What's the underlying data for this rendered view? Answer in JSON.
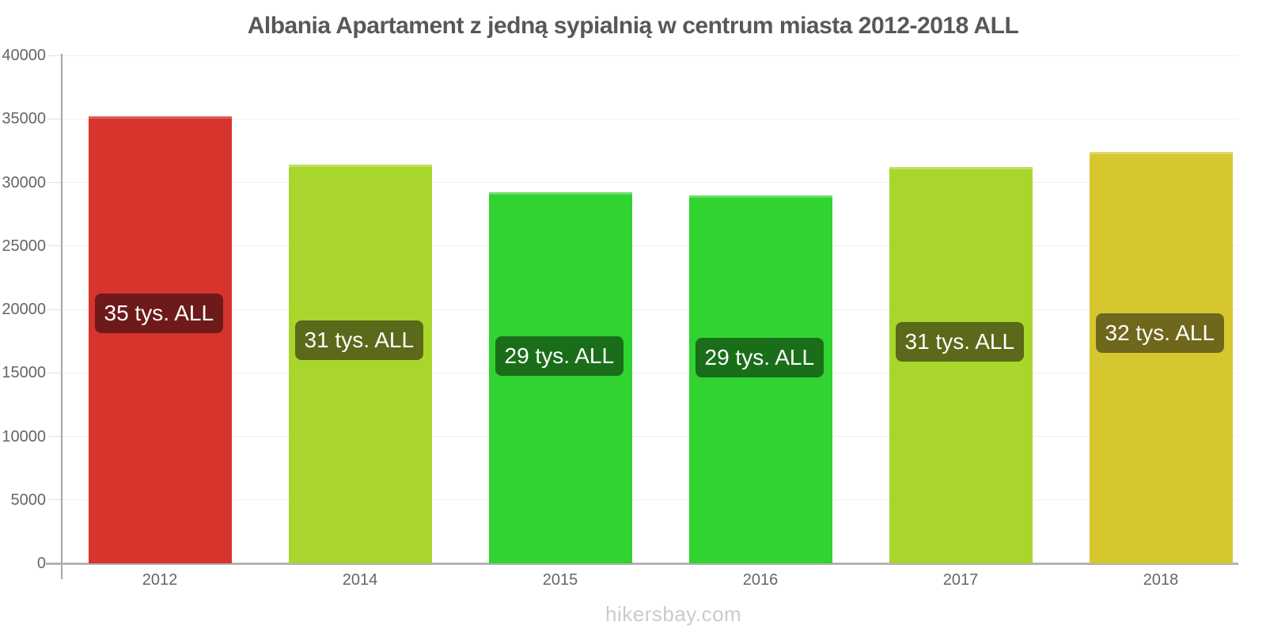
{
  "title": "Albania Apartament z jedną sypialnią w centrum miasta 2012-2018 ALL",
  "footer": "hikersbay.com",
  "colors": {
    "background": "#ffffff",
    "title": "#58585a",
    "axis_text": "#666666",
    "grid": "#f0f0f0",
    "tick": "#e2e2e2",
    "axis_line": "#a6a6a6",
    "baseline": "#b3b3b3",
    "label_text": "#ffffff",
    "footer": "#cbcbcb"
  },
  "chart_data": {
    "type": "bar",
    "title": "Albania Apartament z jedną sypialnią w centrum miasta 2012-2018 ALL",
    "xlabel": "",
    "ylabel": "",
    "categories": [
      "2012",
      "2014",
      "2015",
      "2016",
      "2017",
      "2018"
    ],
    "values": [
      35200,
      31400,
      29200,
      29000,
      31200,
      32400
    ],
    "bar_labels": [
      "35 tys. ALL",
      "31 tys. ALL",
      "29 tys. ALL",
      "29 tys. ALL",
      "31 tys. ALL",
      "32 tys. ALL"
    ],
    "bar_colors": [
      "#d7342e",
      "#a9d62c",
      "#30d330",
      "#30d330",
      "#a9d62c",
      "#d6c72e"
    ],
    "bar_top_edge_colors": [
      "#de5f54",
      "#c3e060",
      "#6ade6a",
      "#6ade6a",
      "#c3e060",
      "#e0d66a"
    ],
    "label_bg_colors": [
      "#6e1a1a",
      "#5a691a",
      "#1a6e1a",
      "#1a6e1a",
      "#5a691a",
      "#6f671c"
    ],
    "ylim": [
      0,
      40000
    ],
    "yticks": [
      0,
      5000,
      10000,
      15000,
      20000,
      25000,
      30000,
      35000,
      40000
    ],
    "grid": "horizontal",
    "legend": "none"
  }
}
